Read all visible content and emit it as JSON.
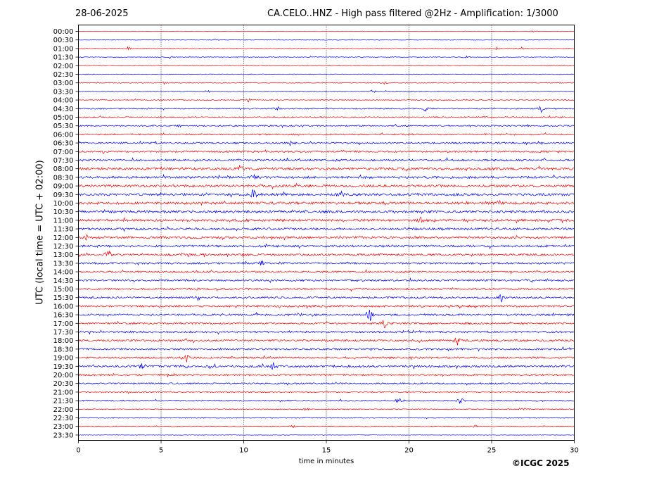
{
  "header": {
    "date": "28-06-2025",
    "title": "CA.CELO..HNZ - High pass filtered @2Hz - Amplification: 1/3000"
  },
  "footer": {
    "copyright": "©ICGC 2025"
  },
  "chart_data": {
    "type": "line",
    "title": "CA.CELO..HNZ - High pass filtered @2Hz - Amplification: 1/3000",
    "xlabel": "time in minutes",
    "ylabel": "UTC (local time = UTC + 02:00)",
    "xlim": [
      0,
      30
    ],
    "x_ticks": [
      0,
      5,
      10,
      15,
      20,
      25,
      30
    ],
    "x_tick_labels": [
      "0",
      "5",
      "10",
      "15",
      "20",
      "25",
      "30"
    ],
    "grid": "vertical dotted at 5-minute ticks",
    "colors": [
      "#ff0000",
      "#0000ff"
    ],
    "rows": [
      "00:00",
      "00:30",
      "01:00",
      "01:30",
      "02:00",
      "02:30",
      "03:00",
      "03:30",
      "04:00",
      "04:30",
      "05:00",
      "05:30",
      "06:00",
      "06:30",
      "07:00",
      "07:30",
      "08:00",
      "08:30",
      "09:00",
      "09:30",
      "10:00",
      "10:30",
      "11:00",
      "11:30",
      "12:00",
      "12:30",
      "13:00",
      "13:30",
      "14:00",
      "14:30",
      "15:00",
      "15:30",
      "16:00",
      "16:30",
      "17:00",
      "17:30",
      "18:00",
      "18:30",
      "19:00",
      "19:30",
      "20:00",
      "20:30",
      "21:00",
      "21:30",
      "22:00",
      "22:30",
      "23:00",
      "23:30"
    ],
    "activity_level": [
      0.05,
      0.08,
      0.12,
      0.15,
      0.1,
      0.12,
      0.18,
      0.2,
      0.3,
      0.35,
      0.4,
      0.45,
      0.5,
      0.55,
      0.6,
      0.7,
      0.85,
      0.8,
      0.85,
      0.9,
      0.9,
      0.85,
      0.85,
      0.8,
      0.8,
      0.75,
      0.7,
      0.65,
      0.6,
      0.6,
      0.6,
      0.65,
      0.7,
      0.65,
      0.6,
      0.65,
      0.7,
      0.6,
      0.6,
      0.75,
      0.6,
      0.5,
      0.35,
      0.4,
      0.25,
      0.25,
      0.15,
      0.05
    ],
    "events": [
      {
        "row": 0,
        "minute": 27.5,
        "amp": 0.25
      },
      {
        "row": 1,
        "minute": 8.3,
        "amp": 0.3
      },
      {
        "row": 2,
        "minute": 3.0,
        "amp": 0.4
      },
      {
        "row": 2,
        "minute": 25.3,
        "amp": 0.35
      },
      {
        "row": 2,
        "minute": 26.8,
        "amp": 0.3
      },
      {
        "row": 3,
        "minute": 5.5,
        "amp": 0.5
      },
      {
        "row": 3,
        "minute": 23.5,
        "amp": 0.45
      },
      {
        "row": 6,
        "minute": 5.2,
        "amp": 0.3
      },
      {
        "row": 6,
        "minute": 18.5,
        "amp": 0.3
      },
      {
        "row": 7,
        "minute": 7.8,
        "amp": 0.4
      },
      {
        "row": 7,
        "minute": 17.8,
        "amp": 0.5
      },
      {
        "row": 8,
        "minute": 10.3,
        "amp": 0.6
      },
      {
        "row": 9,
        "minute": 12.0,
        "amp": 0.7
      },
      {
        "row": 9,
        "minute": 21.0,
        "amp": 0.7
      },
      {
        "row": 9,
        "minute": 28.0,
        "amp": 0.8
      },
      {
        "row": 10,
        "minute": 24.5,
        "amp": 0.45
      },
      {
        "row": 11,
        "minute": 6.2,
        "amp": 0.5
      },
      {
        "row": 13,
        "minute": 4.7,
        "amp": 0.5
      },
      {
        "row": 13,
        "minute": 12.8,
        "amp": 0.55
      },
      {
        "row": 16,
        "minute": 9.8,
        "amp": 1.0
      },
      {
        "row": 17,
        "minute": 10.6,
        "amp": 0.7
      },
      {
        "row": 19,
        "minute": 10.6,
        "amp": 1.6
      },
      {
        "row": 19,
        "minute": 15.9,
        "amp": 0.6
      },
      {
        "row": 22,
        "minute": 20.7,
        "amp": 0.6
      },
      {
        "row": 24,
        "minute": 0.5,
        "amp": 0.6
      },
      {
        "row": 26,
        "minute": 1.8,
        "amp": 1.2
      },
      {
        "row": 27,
        "minute": 11.1,
        "amp": 0.6
      },
      {
        "row": 30,
        "minute": 7.1,
        "amp": 0.8
      },
      {
        "row": 31,
        "minute": 25.6,
        "amp": 1.0
      },
      {
        "row": 31,
        "minute": 7.2,
        "amp": 0.9
      },
      {
        "row": 33,
        "minute": 13.4,
        "amp": 0.7
      },
      {
        "row": 33,
        "minute": 17.6,
        "amp": 2.2
      },
      {
        "row": 34,
        "minute": 18.5,
        "amp": 1.8
      },
      {
        "row": 36,
        "minute": 22.9,
        "amp": 0.9
      },
      {
        "row": 38,
        "minute": 6.5,
        "amp": 1.5
      },
      {
        "row": 39,
        "minute": 3.9,
        "amp": 1.0
      },
      {
        "row": 39,
        "minute": 6.5,
        "amp": 1.1
      },
      {
        "row": 39,
        "minute": 8.2,
        "amp": 0.8
      },
      {
        "row": 39,
        "minute": 11.8,
        "amp": 1.0
      },
      {
        "row": 43,
        "minute": 19.4,
        "amp": 1.0
      },
      {
        "row": 43,
        "minute": 23.1,
        "amp": 0.9
      },
      {
        "row": 44,
        "minute": 13.8,
        "amp": 0.4
      },
      {
        "row": 44,
        "minute": 27.0,
        "amp": 0.5
      },
      {
        "row": 46,
        "minute": 13.0,
        "amp": 0.4
      },
      {
        "row": 46,
        "minute": 24.0,
        "amp": 0.4
      }
    ]
  }
}
